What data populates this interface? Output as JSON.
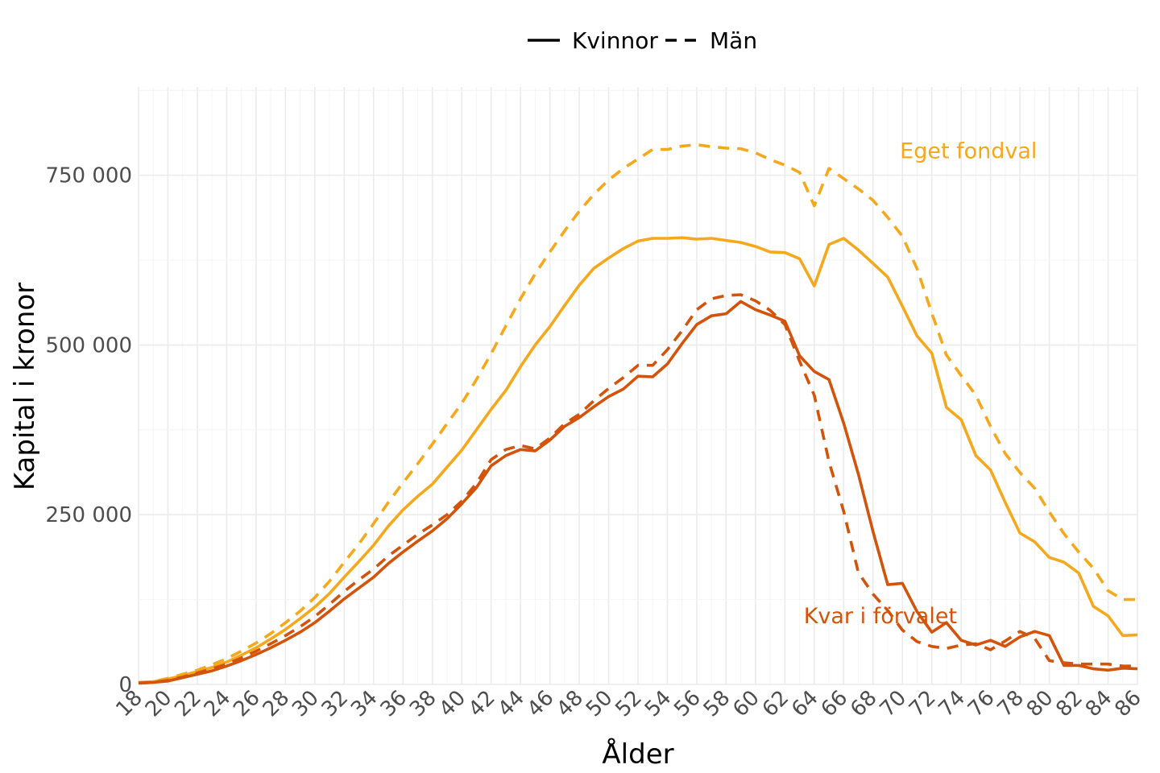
{
  "chart_data": {
    "type": "line",
    "xlabel": "Ålder",
    "ylabel": "Kapital i kronor",
    "xlim": [
      18,
      86
    ],
    "ylim": [
      0,
      880000
    ],
    "x_ticks": [
      "18",
      "20",
      "22",
      "24",
      "26",
      "28",
      "30",
      "32",
      "34",
      "36",
      "38",
      "40",
      "42",
      "44",
      "46",
      "48",
      "50",
      "52",
      "54",
      "56",
      "58",
      "60",
      "62",
      "64",
      "66",
      "68",
      "70",
      "72",
      "74",
      "76",
      "78",
      "80",
      "82",
      "84",
      "86"
    ],
    "y_ticks": [
      {
        "value": 0,
        "label": "0"
      },
      {
        "value": 250000,
        "label": "250 000"
      },
      {
        "value": 500000,
        "label": "500 000"
      },
      {
        "value": 750000,
        "label": "750 000"
      }
    ],
    "grid": true,
    "legend": {
      "position": "top",
      "items": [
        {
          "label": "Kvinnor",
          "dash": "solid"
        },
        {
          "label": "Män",
          "dash": "dashed"
        }
      ]
    },
    "annotations": [
      {
        "text": "Eget fondval",
        "x": 74.5,
        "y": 775000,
        "color": "#f5a81c"
      },
      {
        "text": "Kvar i förvalet",
        "x": 68.5,
        "y": 90000,
        "color": "#d4530a"
      }
    ],
    "series": [
      {
        "group": "Eget fondval",
        "sex": "Kvinnor",
        "color": "#f5a81c",
        "dash": "solid",
        "x": [
          18,
          19,
          20,
          21,
          22,
          23,
          24,
          25,
          26,
          27,
          28,
          29,
          30,
          31,
          32,
          33,
          34,
          35,
          36,
          37,
          38,
          39,
          40,
          41,
          42,
          43,
          44,
          45,
          46,
          47,
          48,
          49,
          50,
          51,
          52,
          53,
          54,
          55,
          56,
          57,
          58,
          59,
          60,
          61,
          62,
          63,
          64,
          65,
          66,
          67,
          68,
          69,
          70,
          71,
          72,
          73,
          74,
          75,
          76,
          77,
          78,
          79,
          80,
          81,
          82,
          83,
          84,
          85,
          86
        ],
        "y": [
          3000,
          4000,
          8000,
          13000,
          19000,
          25000,
          33000,
          43000,
          54000,
          67000,
          81000,
          97000,
          114000,
          134000,
          158000,
          181000,
          205000,
          233000,
          257000,
          277000,
          295000,
          320000,
          345000,
          375000,
          405000,
          433000,
          468000,
          500000,
          527000,
          558000,
          588000,
          613000,
          628000,
          642000,
          653000,
          657000,
          657000,
          658000,
          656000,
          657000,
          654000,
          651000,
          645000,
          637000,
          636000,
          627000,
          587000,
          648000,
          657000,
          640000,
          620000,
          600000,
          557000,
          513000,
          488000,
          408000,
          390000,
          337000,
          316000,
          268000,
          223000,
          210000,
          187000,
          180000,
          164000,
          115000,
          101000,
          72000,
          73000
        ]
      },
      {
        "group": "Eget fondval",
        "sex": "Män",
        "color": "#f5a81c",
        "dash": "dashed",
        "x": [
          18,
          19,
          20,
          21,
          22,
          23,
          24,
          25,
          26,
          27,
          28,
          29,
          30,
          31,
          32,
          33,
          34,
          35,
          36,
          37,
          38,
          39,
          40,
          41,
          42,
          43,
          44,
          45,
          46,
          47,
          48,
          49,
          50,
          51,
          52,
          53,
          54,
          55,
          56,
          57,
          58,
          59,
          60,
          61,
          62,
          63,
          64,
          65,
          66,
          67,
          68,
          69,
          70,
          71,
          72,
          73,
          74,
          75,
          76,
          77,
          78,
          79,
          80,
          81,
          82,
          83,
          84,
          85,
          86
        ],
        "y": [
          3000,
          4000,
          9000,
          15000,
          21000,
          29000,
          38000,
          49000,
          61000,
          75000,
          91000,
          108000,
          128000,
          152000,
          180000,
          207000,
          237000,
          268000,
          297000,
          325000,
          354000,
          384000,
          414000,
          449000,
          487000,
          528000,
          568000,
          605000,
          637000,
          668000,
          697000,
          722000,
          743000,
          760000,
          774000,
          788000,
          788000,
          793000,
          795000,
          792000,
          790000,
          789000,
          783000,
          773000,
          765000,
          754000,
          705000,
          760000,
          745000,
          730000,
          713000,
          688000,
          660000,
          612000,
          547000,
          485000,
          455000,
          426000,
          380000,
          340000,
          312000,
          289000,
          254000,
          222000,
          195000,
          171000,
          138000,
          125000,
          125000
        ]
      },
      {
        "group": "Kvar i förvalet",
        "sex": "Kvinnor",
        "color": "#d4530a",
        "dash": "solid",
        "x": [
          18,
          19,
          20,
          21,
          22,
          23,
          24,
          25,
          26,
          27,
          28,
          29,
          30,
          31,
          32,
          33,
          34,
          35,
          36,
          37,
          38,
          39,
          40,
          41,
          42,
          43,
          44,
          45,
          46,
          47,
          48,
          49,
          50,
          51,
          52,
          53,
          54,
          55,
          56,
          57,
          58,
          59,
          60,
          61,
          62,
          63,
          64,
          65,
          66,
          67,
          68,
          69,
          70,
          71,
          72,
          73,
          74,
          75,
          76,
          77,
          78,
          79,
          80,
          81,
          82,
          83,
          84,
          85,
          86
        ],
        "y": [
          2000,
          3000,
          5000,
          10000,
          15000,
          20000,
          27000,
          35000,
          44000,
          54000,
          65000,
          77000,
          91000,
          108000,
          126000,
          142000,
          158000,
          178000,
          195000,
          211000,
          226000,
          244000,
          266000,
          290000,
          322000,
          337000,
          346000,
          344000,
          360000,
          380000,
          393000,
          409000,
          424000,
          435000,
          454000,
          453000,
          472000,
          502000,
          530000,
          543000,
          546000,
          564000,
          552000,
          544000,
          535000,
          484000,
          461000,
          449000,
          385000,
          310000,
          225000,
          147000,
          149000,
          107000,
          77000,
          91000,
          65000,
          58000,
          65000,
          56000,
          70000,
          78000,
          72000,
          28000,
          28000,
          23000,
          21000,
          24000,
          23000
        ]
      },
      {
        "group": "Kvar i förvalet",
        "sex": "Män",
        "color": "#d4530a",
        "dash": "dashed",
        "x": [
          18,
          19,
          20,
          21,
          22,
          23,
          24,
          25,
          26,
          27,
          28,
          29,
          30,
          31,
          32,
          33,
          34,
          35,
          36,
          37,
          38,
          39,
          40,
          41,
          42,
          43,
          44,
          45,
          46,
          47,
          48,
          49,
          50,
          51,
          52,
          53,
          54,
          55,
          56,
          57,
          58,
          59,
          60,
          61,
          62,
          63,
          64,
          65,
          66,
          67,
          68,
          69,
          70,
          71,
          72,
          73,
          74,
          75,
          76,
          77,
          78,
          79,
          80,
          81,
          82,
          83,
          84,
          85,
          86
        ],
        "y": [
          2000,
          3000,
          6000,
          11000,
          17000,
          23000,
          30000,
          39000,
          49000,
          60000,
          72000,
          85000,
          100000,
          118000,
          137000,
          154000,
          170000,
          189000,
          205000,
          221000,
          235000,
          250000,
          270000,
          296000,
          331000,
          346000,
          352000,
          347000,
          363000,
          384000,
          398000,
          418000,
          436000,
          452000,
          470000,
          470000,
          493000,
          521000,
          552000,
          568000,
          573000,
          574000,
          565000,
          551000,
          530000,
          476000,
          426000,
          328000,
          255000,
          165000,
          133000,
          109000,
          80000,
          63000,
          56000,
          53000,
          58000,
          60000,
          51000,
          64000,
          78000,
          68000,
          35000,
          32000,
          30000,
          30000,
          30000,
          27000,
          27000
        ]
      }
    ]
  }
}
